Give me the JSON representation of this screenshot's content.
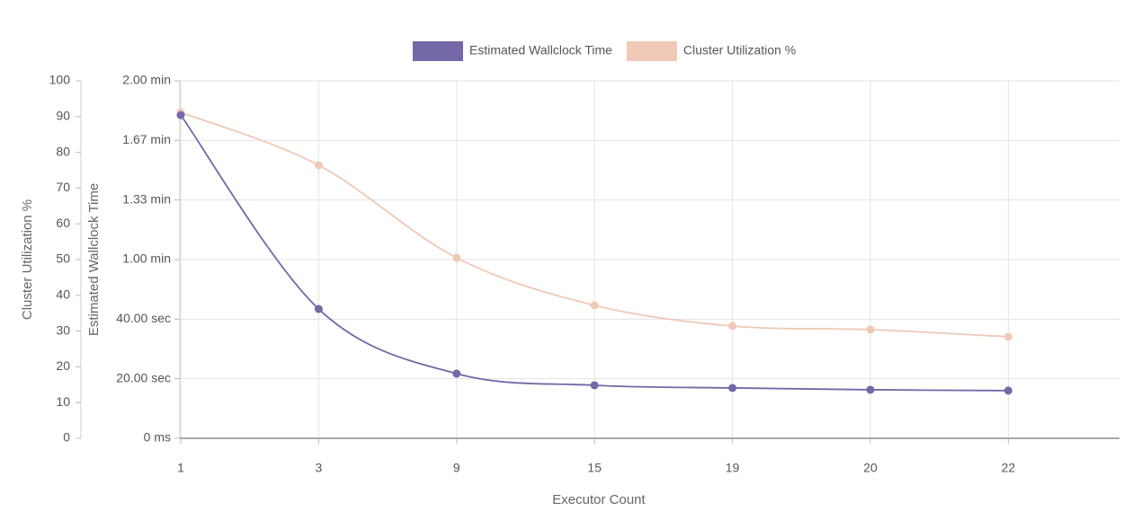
{
  "chart_data": {
    "type": "line",
    "categories": [
      "1",
      "3",
      "9",
      "15",
      "19",
      "20",
      "22"
    ],
    "x_label": "Executor Count",
    "y_label": "Estimated Wallclock Time",
    "y2_label": "Cluster Utilization %",
    "ylim": [
      0,
      120
    ],
    "yticks": [
      {
        "value": 0,
        "label": "0 ms"
      },
      {
        "value": 20,
        "label": "20.00 sec"
      },
      {
        "value": 40,
        "label": "40.00 sec"
      },
      {
        "value": 60,
        "label": "1.00 min"
      },
      {
        "value": 80,
        "label": "1.33 min"
      },
      {
        "value": 100,
        "label": "1.67 min"
      },
      {
        "value": 120,
        "label": "2.00 min"
      }
    ],
    "y2lim": [
      0,
      100
    ],
    "y2ticks": [
      0,
      10,
      20,
      30,
      40,
      50,
      60,
      70,
      80,
      90,
      100
    ],
    "grid": true,
    "legend": "top",
    "series": [
      {
        "name": "Estimated Wallclock Time",
        "color": "#7468a8",
        "values": [
          108.5,
          43.4,
          21.7,
          17.8,
          16.9,
          16.3,
          16.0
        ]
      },
      {
        "name": "Cluster Utilization %",
        "color": "#f0c9b6",
        "axis": "y2",
        "values": [
          91.2,
          76.4,
          50.5,
          37.2,
          31.4,
          30.4,
          28.4
        ]
      }
    ]
  }
}
